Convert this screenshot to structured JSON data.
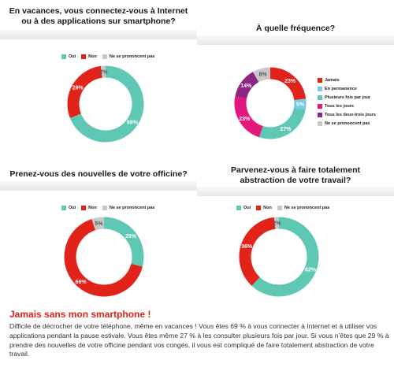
{
  "colors": {
    "oui": "#5ec8b4",
    "non": "#e2231a",
    "npp": "#c8c8c8",
    "red": "#e2231a",
    "teal": "#5ec8b4",
    "lightblue": "#77c7e6",
    "pink": "#e4177c",
    "purple": "#8e2584",
    "gray": "#c8c8c8"
  },
  "footer": {
    "title": "Jamais sans mon smartphone !",
    "body": "Difficile de décrocher de votre téléphone, même en vacances ! Vous êtes 69 % à vous connecter à Internet et à utiliser vos applications pendant la pause estivale. Vous êtes même 27 % à les consulter plusieurs fois par jour. Si vous n’êtes que 29 % à prendre des nouvelles de votre officine pendant vos congés, il vous est compliqué de faire totalement abstraction de votre travail."
  },
  "chart_data": [
    {
      "type": "pie",
      "title_lines": [
        "En vacances, vous connectez-vous à Internet",
        "ou à des applications sur smartphone?"
      ],
      "legend": [
        "Oui",
        "Non",
        "Ne se prononcent pas"
      ],
      "slices": [
        {
          "label": "Oui",
          "value": 69,
          "text": "69%",
          "color": "#5ec8b4"
        },
        {
          "label": "Non",
          "value": 29,
          "text": "29%",
          "color": "#e2231a"
        },
        {
          "label": "Ne se prononcent pas",
          "value": 2,
          "text": "2%",
          "color": "#c8c8c8"
        }
      ]
    },
    {
      "type": "pie",
      "title_lines": [
        "À quelle fréquence?"
      ],
      "legend": [
        "Jamais",
        "En permanence",
        "Plusieurs fois par jour",
        "Tous les jours",
        "Tous les deux-trois jours",
        "Ne se prononcent pas"
      ],
      "slices": [
        {
          "label": "Jamais",
          "value": 23,
          "text": "23%",
          "color": "#e2231a"
        },
        {
          "label": "En permanence",
          "value": 5,
          "text": "5%",
          "color": "#77c7e6"
        },
        {
          "label": "Plusieurs fois par jour",
          "value": 27,
          "text": "27%",
          "color": "#5ec8b4"
        },
        {
          "label": "Tous les jours",
          "value": 23,
          "text": "23%",
          "color": "#e4177c"
        },
        {
          "label": "Tous les deux-trois jours",
          "value": 14,
          "text": "14%",
          "color": "#8e2584"
        },
        {
          "label": "Ne se prononcent pas",
          "value": 8,
          "text": "8%",
          "color": "#c8c8c8"
        }
      ]
    },
    {
      "type": "pie",
      "title_lines": [
        "Prenez-vous des nouvelles de votre officine?"
      ],
      "legend": [
        "Oui",
        "Non",
        "Ne se prononcent pas"
      ],
      "slices": [
        {
          "label": "Oui",
          "value": 29,
          "text": "29%",
          "color": "#5ec8b4"
        },
        {
          "label": "Non",
          "value": 66,
          "text": "66%",
          "color": "#e2231a"
        },
        {
          "label": "Ne se prononcent pas",
          "value": 5,
          "text": "5%",
          "color": "#c8c8c8"
        }
      ]
    },
    {
      "type": "pie",
      "title_lines": [
        "Parvenez-vous à faire totalement",
        "abstraction de votre travail?"
      ],
      "legend": [
        "Oui",
        "Non",
        "Ne se prononcent pas"
      ],
      "slices": [
        {
          "label": "Oui",
          "value": 62,
          "text": "62%",
          "color": "#5ec8b4"
        },
        {
          "label": "Non",
          "value": 36,
          "text": "36%",
          "color": "#e2231a"
        },
        {
          "label": "Ne se prononcent pas",
          "value": 2,
          "text": "2%",
          "color": "#c8c8c8"
        }
      ]
    }
  ]
}
